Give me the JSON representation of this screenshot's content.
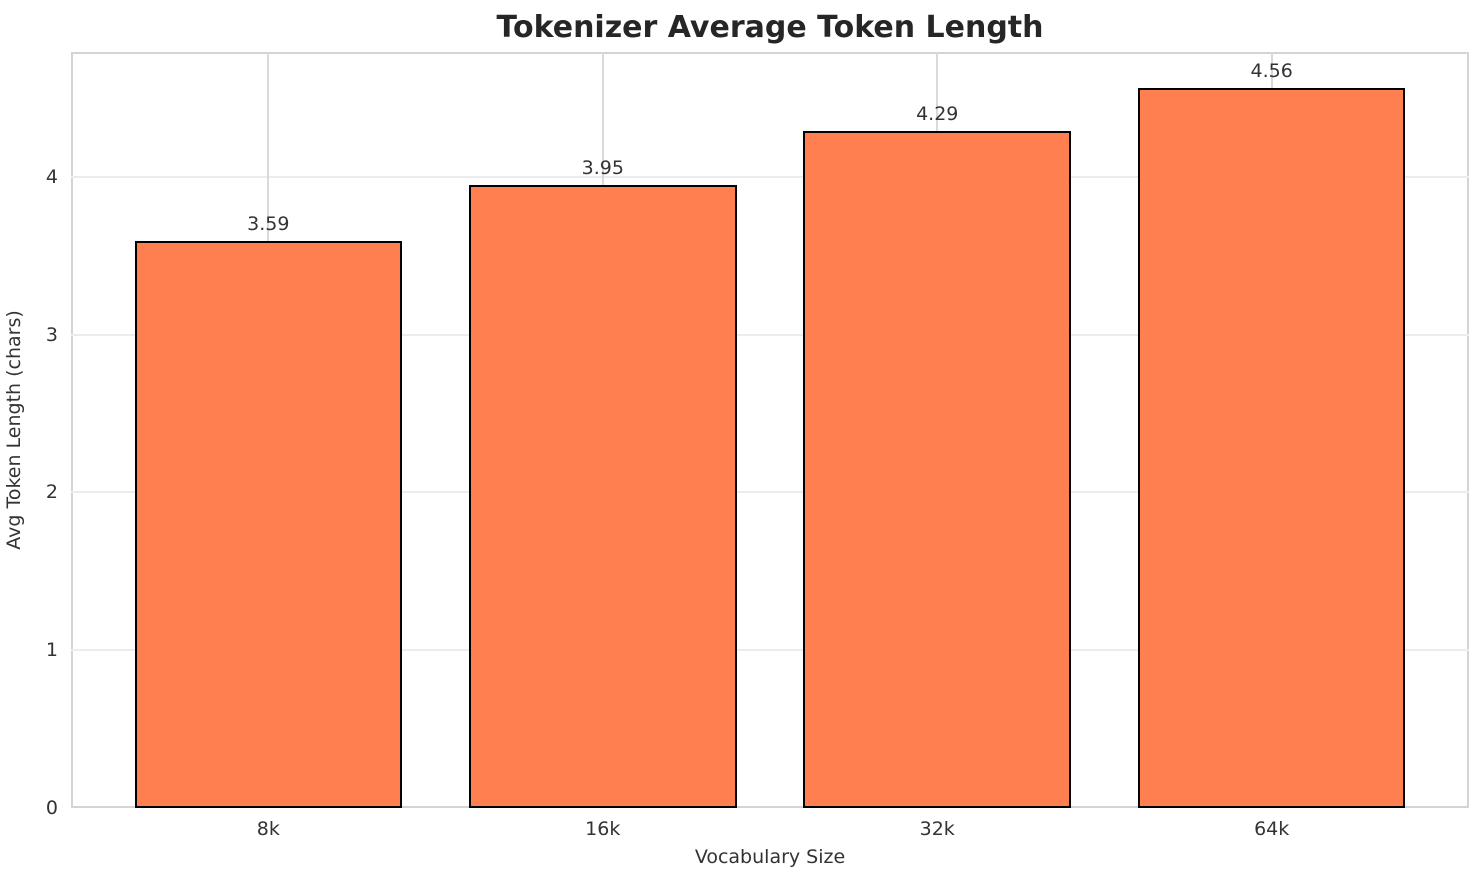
{
  "chart_data": {
    "type": "bar",
    "title": "Tokenizer Average Token Length",
    "xlabel": "Vocabulary Size",
    "ylabel": "Avg Token Length (chars)",
    "categories": [
      "8k",
      "16k",
      "32k",
      "64k"
    ],
    "values": [
      3.59,
      3.95,
      4.29,
      4.56
    ],
    "value_labels": [
      "3.59",
      "3.95",
      "4.29",
      "4.56"
    ],
    "yticks": [
      0,
      1,
      2,
      3,
      4
    ],
    "ylim": [
      0,
      4.79
    ],
    "xlim": [
      -0.59,
      3.59
    ],
    "bar_width_fraction": 0.8,
    "grid": "both",
    "legend": "none",
    "colors": {
      "bar_fill": "#FF7F50",
      "bar_edge": "#000000",
      "grid_horizontal": "#ececec",
      "grid_vertical": "#d9d9d9",
      "spine": "#d4d4d4",
      "text": "#333333",
      "title": "#262626",
      "background": "#ffffff"
    }
  }
}
